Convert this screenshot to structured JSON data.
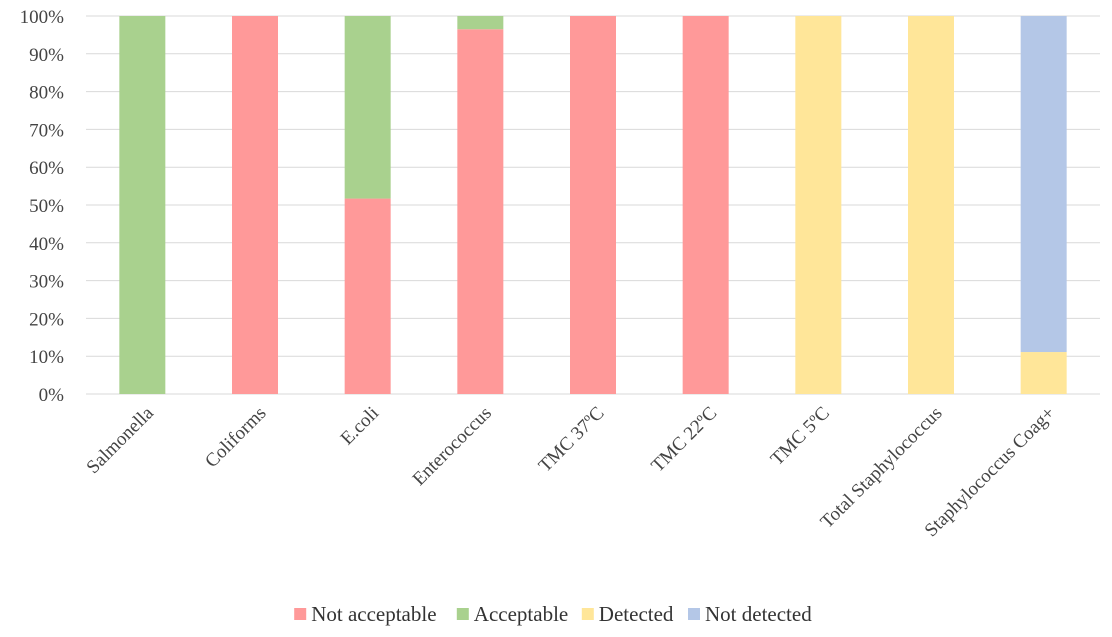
{
  "chart_data": {
    "type": "bar",
    "stacked": true,
    "categories": [
      "Salmonella",
      "Coliforms",
      "E.coli",
      "Enterococcus",
      "TMC 37ºC",
      "TMC 22ºC",
      "TMC 5ºC",
      "Total Staphylococcus",
      "Staphylococcus Coag+"
    ],
    "series": [
      {
        "name": "Not acceptable",
        "color": "#ff9999",
        "values": [
          0,
          100,
          51.7,
          96.5,
          100,
          100,
          0,
          0,
          0
        ]
      },
      {
        "name": "Acceptable",
        "color": "#a9d18e",
        "values": [
          100,
          0,
          48.3,
          3.5,
          0,
          0,
          0,
          0,
          0
        ]
      },
      {
        "name": "Detected",
        "color": "#ffe699",
        "values": [
          0,
          0,
          0,
          0,
          0,
          0,
          100,
          100,
          11.1
        ]
      },
      {
        "name": "Not detected",
        "color": "#b4c7e7",
        "values": [
          0,
          0,
          0,
          0,
          0,
          0,
          0,
          0,
          88.9
        ]
      }
    ],
    "y_ticks": [
      "0%",
      "10%",
      "20%",
      "30%",
      "40%",
      "50%",
      "60%",
      "70%",
      "80%",
      "90%",
      "100%"
    ],
    "ylim": [
      0,
      100
    ],
    "ylabel": "",
    "xlabel": "",
    "title": "",
    "grid": true,
    "legend_position": "bottom"
  }
}
